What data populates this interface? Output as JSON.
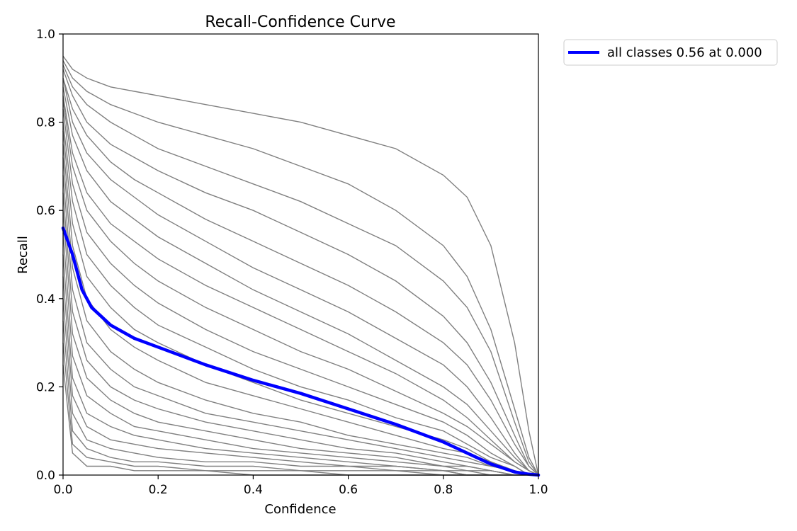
{
  "chart_data": {
    "type": "line",
    "title": "Recall-Confidence Curve",
    "xlabel": "Confidence",
    "ylabel": "Recall",
    "xlim": [
      0.0,
      1.0
    ],
    "ylim": [
      0.0,
      1.0
    ],
    "xticks": [
      "0.0",
      "0.2",
      "0.4",
      "0.6",
      "0.8",
      "1.0"
    ],
    "yticks": [
      "0.0",
      "0.2",
      "0.4",
      "0.6",
      "0.8",
      "1.0"
    ],
    "grid": false,
    "legend_position": "outside-top-right",
    "class_curves": {
      "description": "many per-class recall curves drawn in gray",
      "color": "#808080",
      "x": [
        0.0,
        0.02,
        0.05,
        0.1,
        0.15,
        0.2,
        0.3,
        0.4,
        0.5,
        0.6,
        0.7,
        0.8,
        0.85,
        0.9,
        0.95,
        0.98,
        1.0
      ],
      "series": [
        {
          "values": [
            0.95,
            0.92,
            0.9,
            0.88,
            0.87,
            0.86,
            0.84,
            0.82,
            0.8,
            0.77,
            0.74,
            0.68,
            0.63,
            0.52,
            0.3,
            0.1,
            0.0
          ]
        },
        {
          "values": [
            0.94,
            0.9,
            0.87,
            0.84,
            0.82,
            0.8,
            0.77,
            0.74,
            0.7,
            0.66,
            0.6,
            0.52,
            0.45,
            0.33,
            0.15,
            0.04,
            0.0
          ]
        },
        {
          "values": [
            0.93,
            0.88,
            0.84,
            0.8,
            0.77,
            0.74,
            0.7,
            0.66,
            0.62,
            0.57,
            0.52,
            0.44,
            0.38,
            0.28,
            0.12,
            0.03,
            0.0
          ]
        },
        {
          "values": [
            0.92,
            0.86,
            0.8,
            0.75,
            0.72,
            0.69,
            0.64,
            0.6,
            0.55,
            0.5,
            0.44,
            0.36,
            0.3,
            0.21,
            0.09,
            0.02,
            0.0
          ]
        },
        {
          "values": [
            0.9,
            0.83,
            0.77,
            0.71,
            0.67,
            0.64,
            0.58,
            0.53,
            0.48,
            0.43,
            0.37,
            0.3,
            0.25,
            0.17,
            0.07,
            0.02,
            0.0
          ]
        },
        {
          "values": [
            0.9,
            0.8,
            0.73,
            0.67,
            0.63,
            0.59,
            0.53,
            0.47,
            0.42,
            0.37,
            0.31,
            0.25,
            0.2,
            0.13,
            0.05,
            0.01,
            0.0
          ]
        },
        {
          "values": [
            0.88,
            0.77,
            0.69,
            0.62,
            0.58,
            0.54,
            0.48,
            0.42,
            0.37,
            0.32,
            0.26,
            0.2,
            0.16,
            0.1,
            0.04,
            0.01,
            0.0
          ]
        },
        {
          "values": [
            0.86,
            0.73,
            0.64,
            0.57,
            0.53,
            0.49,
            0.43,
            0.38,
            0.33,
            0.28,
            0.23,
            0.17,
            0.13,
            0.08,
            0.03,
            0.01,
            0.0
          ]
        },
        {
          "values": [
            0.85,
            0.7,
            0.6,
            0.53,
            0.48,
            0.44,
            0.38,
            0.33,
            0.28,
            0.24,
            0.19,
            0.14,
            0.11,
            0.07,
            0.03,
            0.01,
            0.0
          ]
        },
        {
          "values": [
            0.83,
            0.66,
            0.55,
            0.48,
            0.43,
            0.39,
            0.33,
            0.28,
            0.24,
            0.2,
            0.16,
            0.12,
            0.09,
            0.05,
            0.02,
            0.0,
            0.0
          ]
        },
        {
          "values": [
            0.8,
            0.62,
            0.5,
            0.43,
            0.38,
            0.34,
            0.29,
            0.24,
            0.2,
            0.17,
            0.13,
            0.1,
            0.07,
            0.04,
            0.02,
            0.0,
            0.0
          ]
        },
        {
          "values": [
            0.78,
            0.57,
            0.45,
            0.38,
            0.33,
            0.3,
            0.25,
            0.21,
            0.17,
            0.14,
            0.11,
            0.08,
            0.06,
            0.03,
            0.01,
            0.0,
            0.0
          ]
        },
        {
          "values": [
            0.75,
            0.52,
            0.4,
            0.33,
            0.29,
            0.26,
            0.21,
            0.18,
            0.15,
            0.12,
            0.09,
            0.06,
            0.05,
            0.03,
            0.01,
            0.0,
            0.0
          ]
        },
        {
          "values": [
            0.72,
            0.47,
            0.35,
            0.28,
            0.24,
            0.21,
            0.17,
            0.14,
            0.12,
            0.09,
            0.07,
            0.05,
            0.04,
            0.02,
            0.01,
            0.0,
            0.0
          ]
        },
        {
          "values": [
            0.68,
            0.42,
            0.3,
            0.24,
            0.2,
            0.18,
            0.14,
            0.12,
            0.1,
            0.08,
            0.06,
            0.04,
            0.03,
            0.02,
            0.01,
            0.0,
            0.0
          ]
        },
        {
          "values": [
            0.64,
            0.37,
            0.26,
            0.2,
            0.17,
            0.15,
            0.12,
            0.1,
            0.08,
            0.06,
            0.05,
            0.03,
            0.02,
            0.01,
            0.0,
            0.0,
            0.0
          ]
        },
        {
          "values": [
            0.6,
            0.32,
            0.22,
            0.17,
            0.14,
            0.12,
            0.1,
            0.08,
            0.06,
            0.05,
            0.04,
            0.02,
            0.02,
            0.01,
            0.0,
            0.0,
            0.0
          ]
        },
        {
          "values": [
            0.55,
            0.27,
            0.18,
            0.14,
            0.11,
            0.1,
            0.08,
            0.06,
            0.05,
            0.04,
            0.03,
            0.02,
            0.01,
            0.01,
            0.0,
            0.0,
            0.0
          ]
        },
        {
          "values": [
            0.5,
            0.22,
            0.14,
            0.11,
            0.09,
            0.08,
            0.06,
            0.05,
            0.04,
            0.03,
            0.02,
            0.01,
            0.01,
            0.0,
            0.0,
            0.0,
            0.0
          ]
        },
        {
          "values": [
            0.45,
            0.18,
            0.11,
            0.08,
            0.07,
            0.06,
            0.05,
            0.04,
            0.03,
            0.02,
            0.02,
            0.01,
            0.0,
            0.0,
            0.0,
            0.0,
            0.0
          ]
        },
        {
          "values": [
            0.4,
            0.14,
            0.08,
            0.06,
            0.05,
            0.04,
            0.03,
            0.03,
            0.02,
            0.02,
            0.01,
            0.01,
            0.0,
            0.0,
            0.0,
            0.0,
            0.0
          ]
        },
        {
          "values": [
            0.35,
            0.1,
            0.06,
            0.04,
            0.03,
            0.03,
            0.02,
            0.02,
            0.01,
            0.01,
            0.01,
            0.0,
            0.0,
            0.0,
            0.0,
            0.0,
            0.0
          ]
        },
        {
          "values": [
            0.3,
            0.07,
            0.04,
            0.03,
            0.02,
            0.02,
            0.01,
            0.01,
            0.01,
            0.0,
            0.0,
            0.0,
            0.0,
            0.0,
            0.0,
            0.0,
            0.0
          ]
        },
        {
          "values": [
            0.25,
            0.05,
            0.02,
            0.02,
            0.01,
            0.01,
            0.01,
            0.0,
            0.0,
            0.0,
            0.0,
            0.0,
            0.0,
            0.0,
            0.0,
            0.0,
            0.0
          ]
        }
      ]
    },
    "series": [
      {
        "name": "all classes 0.56 at 0.000",
        "color": "#0000ff",
        "x": [
          0.0,
          0.02,
          0.04,
          0.06,
          0.08,
          0.1,
          0.15,
          0.2,
          0.3,
          0.4,
          0.5,
          0.6,
          0.7,
          0.8,
          0.85,
          0.9,
          0.95,
          0.98,
          1.0
        ],
        "values": [
          0.56,
          0.5,
          0.42,
          0.38,
          0.36,
          0.34,
          0.31,
          0.29,
          0.25,
          0.215,
          0.185,
          0.15,
          0.115,
          0.075,
          0.05,
          0.025,
          0.007,
          0.002,
          0.0
        ]
      }
    ]
  }
}
